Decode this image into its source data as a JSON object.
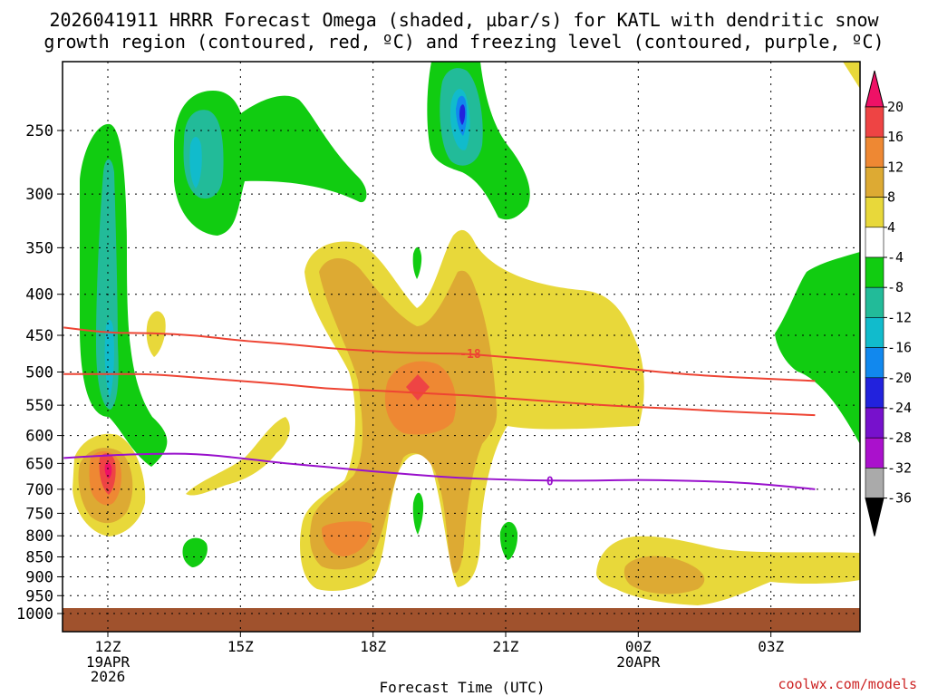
{
  "chart_data": {
    "type": "heatmap",
    "title_line1": "2026041911 HRRR Forecast Omega (shaded, µbar/s) for KATL with dendritic snow",
    "title_line2": "growth region (contoured, red, ºC) and freezing level (contoured, purple, ºC)",
    "xlabel": "Forecast Time (UTC)",
    "watermark": "coolwx.com/models",
    "y_axis": {
      "ticks": [
        250,
        300,
        350,
        400,
        450,
        500,
        550,
        600,
        650,
        700,
        750,
        800,
        850,
        900,
        950,
        1000
      ],
      "labels": [
        "250",
        "300",
        "350",
        "400",
        "450",
        "500",
        "550",
        "600",
        "650",
        "700",
        "750",
        "800",
        "850",
        "900",
        "950",
        "1000"
      ]
    },
    "x_axis": {
      "ticks": [
        12,
        15,
        18,
        21,
        24,
        27
      ],
      "labels": [
        "12Z",
        "15Z",
        "18Z",
        "21Z",
        "00Z",
        "03Z"
      ],
      "date_labels": [
        {
          "hour": 12,
          "lines": [
            "19APR",
            "2026"
          ]
        },
        {
          "hour": 24,
          "lines": [
            "20APR"
          ]
        }
      ]
    },
    "colorbar": {
      "labels": [
        "20",
        "16",
        "12",
        "8",
        "4",
        "-4",
        "-8",
        "-12",
        "-16",
        "-20",
        "-24",
        "-28",
        "-32",
        "-36"
      ],
      "colors": [
        "#ee1166",
        "#ee4444",
        "#ee8833",
        "#ddaa33",
        "#e8d83a",
        "#ffffff",
        "#11cc11",
        "#22bb99",
        "#11bbcc",
        "#1188ee",
        "#2222dd",
        "#7711cc",
        "#aa11cc",
        "#aaaaaa",
        "#000000"
      ]
    },
    "contours": [
      {
        "name": "dendritic-snow-growth-upper",
        "color": "#ee4433",
        "label": "-18",
        "points": [
          [
            11,
            440
          ],
          [
            12,
            447
          ],
          [
            13,
            447
          ],
          [
            14,
            450
          ],
          [
            15,
            457
          ],
          [
            16,
            461
          ],
          [
            17,
            467
          ],
          [
            18,
            471
          ],
          [
            19,
            474
          ],
          [
            20,
            474
          ],
          [
            21,
            479
          ],
          [
            22,
            484
          ],
          [
            23,
            490
          ],
          [
            24,
            497
          ],
          [
            25,
            503
          ],
          [
            26,
            507
          ],
          [
            27,
            510
          ],
          [
            28,
            513
          ]
        ]
      },
      {
        "name": "dendritic-snow-growth-lower",
        "color": "#ee4433",
        "label": "",
        "points": [
          [
            11,
            503
          ],
          [
            12,
            503
          ],
          [
            13,
            503
          ],
          [
            14,
            508
          ],
          [
            15,
            513
          ],
          [
            16,
            518
          ],
          [
            17,
            525
          ],
          [
            18,
            527
          ],
          [
            19,
            531
          ],
          [
            20,
            534
          ],
          [
            21,
            539
          ],
          [
            22,
            544
          ],
          [
            23,
            549
          ],
          [
            24,
            553
          ],
          [
            25,
            556
          ],
          [
            26,
            560
          ],
          [
            27,
            563
          ],
          [
            28,
            566
          ]
        ]
      },
      {
        "name": "freezing-level",
        "color": "#9911cc",
        "label": "0",
        "points": [
          [
            11,
            640
          ],
          [
            12,
            635
          ],
          [
            13,
            632
          ],
          [
            14,
            632
          ],
          [
            15,
            640
          ],
          [
            16,
            650
          ],
          [
            17,
            657
          ],
          [
            18,
            665
          ],
          [
            19,
            672
          ],
          [
            20,
            678
          ],
          [
            21,
            681
          ],
          [
            22,
            683
          ],
          [
            23,
            683
          ],
          [
            24,
            681
          ],
          [
            25,
            683
          ],
          [
            26,
            685
          ],
          [
            27,
            691
          ],
          [
            28,
            700
          ]
        ]
      }
    ],
    "contour_label_positions": [
      {
        "label": "-18",
        "hour": 20.2,
        "pressure": 474
      },
      {
        "label": "0",
        "hour": 22.0,
        "pressure": 683
      }
    ],
    "surface_pressure": 975,
    "omega_features": [
      {
        "sign": "upward",
        "peak": -28,
        "hour": 20.0,
        "pressure": 235
      },
      {
        "sign": "upward",
        "peak": -16,
        "hour": 12.0,
        "pressure": 490
      },
      {
        "sign": "upward",
        "peak": -12,
        "hour": 14.0,
        "pressure": 275
      },
      {
        "sign": "downward",
        "peak": 20,
        "hour": 19.0,
        "pressure": 525
      },
      {
        "sign": "downward",
        "peak": 20,
        "hour": 12.0,
        "pressure": 665
      },
      {
        "sign": "downward",
        "peak": 12,
        "hour": 16.8,
        "pressure": 810
      },
      {
        "sign": "downward",
        "peak": 8,
        "hour": 24.3,
        "pressure": 900
      }
    ]
  }
}
